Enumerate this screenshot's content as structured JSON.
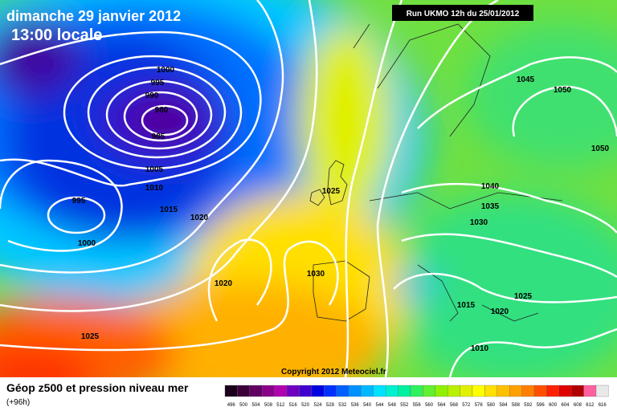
{
  "header": {
    "date": "dimanche 29 janvier 2012",
    "time": "13:00 locale",
    "run": "Run UKMO 12h du 25/01/2012"
  },
  "map": {
    "isobar_labels": [
      1000,
      995,
      990,
      980,
      985,
      1005,
      1010,
      995,
      1015,
      1020,
      1000,
      1020,
      1025,
      1025,
      1030,
      1045,
      1050,
      1050,
      1040,
      1035,
      1030,
      1015,
      1020,
      1025,
      1010
    ],
    "copyright": "Copyright 2012 Meteociel.fr"
  },
  "footer": {
    "title": "Géop z500 et pression niveau mer",
    "lead": "(+96h)"
  },
  "legend": {
    "labels": [
      496,
      500,
      504,
      508,
      512,
      516,
      520,
      524,
      528,
      532,
      536,
      540,
      544,
      548,
      552,
      556,
      560,
      564,
      568,
      572,
      576,
      580,
      584,
      588,
      592,
      596,
      600,
      604,
      608,
      612,
      616
    ],
    "colors": [
      "#1a001a",
      "#3a003a",
      "#600060",
      "#8a008a",
      "#b000b0",
      "#7000c0",
      "#4000d0",
      "#0000e0",
      "#0030ff",
      "#0060ff",
      "#0090ff",
      "#00b8ff",
      "#00e0ff",
      "#00f0d0",
      "#00f0a0",
      "#30f060",
      "#60f030",
      "#90f000",
      "#b8f000",
      "#e0f000",
      "#ffff00",
      "#ffe000",
      "#ffc000",
      "#ffa000",
      "#ff8000",
      "#ff5000",
      "#ff2000",
      "#e00000",
      "#b00000",
      "#ff60a0",
      "#e8e8e8"
    ]
  }
}
